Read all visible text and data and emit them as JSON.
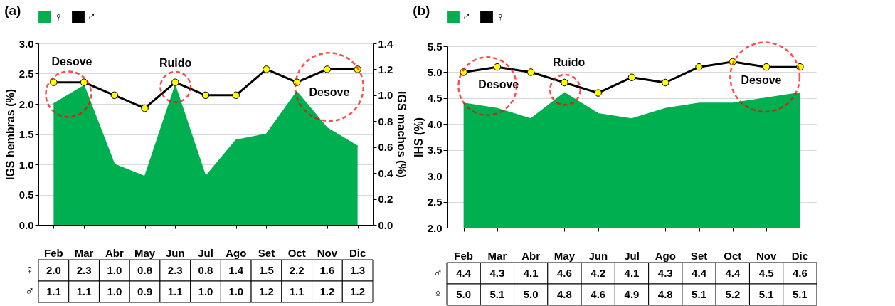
{
  "chart_data": [
    {
      "type": "area",
      "title": "(a)",
      "ylabel": "IGS hembras (%)",
      "y2label": "IGS machos (%)",
      "categories": [
        "Feb",
        "Mar",
        "Abr",
        "May",
        "Jun",
        "Jul",
        "Ago",
        "Set",
        "Oct",
        "Nov",
        "Dic"
      ],
      "ylim": [
        0,
        3
      ],
      "yticks": [
        {
          "value": 0,
          "label": "0.0"
        },
        {
          "value": 0.5,
          "label": "0.5"
        },
        {
          "value": 1,
          "label": "1.0"
        },
        {
          "value": 1.5,
          "label": "1.5"
        },
        {
          "value": 2,
          "label": "2.0"
        },
        {
          "value": 2.5,
          "label": "2.5"
        },
        {
          "value": 3,
          "label": "3.0"
        }
      ],
      "y2lim": [
        0,
        1.4
      ],
      "y2ticks": [
        {
          "value": 0,
          "label": "0.0"
        },
        {
          "value": 0.2,
          "label": "0.2"
        },
        {
          "value": 0.4,
          "label": "0.4"
        },
        {
          "value": 0.6,
          "label": "0.6"
        },
        {
          "value": 0.8,
          "label": "0.8"
        },
        {
          "value": 1,
          "label": "1.0"
        },
        {
          "value": 1.2,
          "label": "1.2"
        },
        {
          "value": 1.4,
          "label": "1.4"
        }
      ],
      "grid": "y",
      "legend": "top",
      "series": [
        {
          "name": "♀",
          "color": "#00b050",
          "values": [
            2.0,
            2.3,
            1.0,
            0.8,
            2.3,
            0.8,
            1.4,
            1.5,
            2.2,
            1.6,
            1.3
          ],
          "value_labels": [
            "2.0",
            "2.3",
            "1.0",
            "0.8",
            "2.3",
            "0.8",
            "1.4",
            "1.5",
            "2.2",
            "1.6",
            "1.3"
          ]
        },
        {
          "name": "♂",
          "type": "line",
          "marker": "circle",
          "color": "#000000",
          "axis": "y2",
          "values": [
            1.1,
            1.1,
            1.0,
            0.9,
            1.1,
            1.0,
            1.0,
            1.2,
            1.1,
            1.2,
            1.2
          ],
          "value_labels": [
            "1.1",
            "1.1",
            "1.0",
            "0.9",
            "1.1",
            "1.0",
            "1.0",
            "1.2",
            "1.1",
            "1.2",
            "1.2"
          ]
        }
      ],
      "annotations": [
        "Desove",
        "Ruido",
        "Desove"
      ]
    },
    {
      "type": "area",
      "title": "(b)",
      "ylabel": "IHS (%)",
      "categories": [
        "Feb",
        "Mar",
        "Abr",
        "May",
        "Jun",
        "Jul",
        "Ago",
        "Set",
        "Oct",
        "Nov",
        "Dic"
      ],
      "ylim": [
        2,
        5.5
      ],
      "yticks": [
        {
          "value": 2,
          "label": "2.0"
        },
        {
          "value": 2.5,
          "label": "2.5"
        },
        {
          "value": 3,
          "label": "3.0"
        },
        {
          "value": 3.5,
          "label": "3.5"
        },
        {
          "value": 4,
          "label": "4.0"
        },
        {
          "value": 4.5,
          "label": "4.5"
        },
        {
          "value": 5,
          "label": "5.0"
        },
        {
          "value": 5.5,
          "label": "5.5"
        }
      ],
      "grid": "y",
      "legend": "top",
      "series": [
        {
          "name": "♂",
          "color": "#00b050",
          "values": [
            4.4,
            4.3,
            4.1,
            4.6,
            4.2,
            4.1,
            4.3,
            4.4,
            4.4,
            4.5,
            4.6
          ],
          "value_labels": [
            "4.4",
            "4.3",
            "4.1",
            "4.6",
            "4.2",
            "4.1",
            "4.3",
            "4.4",
            "4.4",
            "4.5",
            "4.6"
          ]
        },
        {
          "name": "♀",
          "type": "line",
          "marker": "circle",
          "color": "#000000",
          "values": [
            5.0,
            5.1,
            5.0,
            4.8,
            4.6,
            4.9,
            4.8,
            5.1,
            5.2,
            5.1,
            5.1
          ],
          "value_labels": [
            "5.0",
            "5.1",
            "5.0",
            "4.8",
            "4.6",
            "4.9",
            "4.8",
            "5.1",
            "5.2",
            "5.1",
            "5.1"
          ]
        }
      ],
      "annotations": [
        "Desove",
        "Ruido",
        "Desove"
      ]
    }
  ]
}
